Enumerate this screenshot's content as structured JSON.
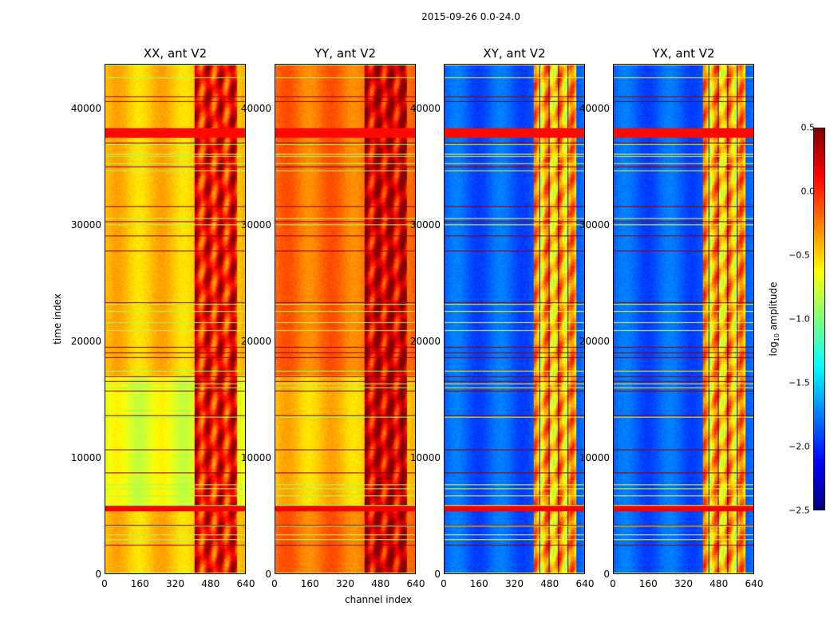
{
  "chart_data": {
    "type": "heatmap",
    "title": "2015-09-26 0.0-24.0",
    "xlabel": "channel index",
    "ylabel": "time index",
    "xlim": [
      0,
      640
    ],
    "ylim": [
      0,
      43800
    ],
    "xticks": [
      "0",
      "160",
      "320",
      "480",
      "640"
    ],
    "yticks": [
      "0",
      "10000",
      "20000",
      "30000",
      "40000"
    ],
    "panels": [
      {
        "title": "XX, ant V2",
        "base_log_amp": -0.45,
        "rfi_log_amp": 0.1
      },
      {
        "title": "YY, ant V2",
        "base_log_amp": -0.2,
        "rfi_log_amp": 0.25
      },
      {
        "title": "XY, ant V2",
        "base_log_amp": -1.85,
        "rfi_log_amp": -0.4
      },
      {
        "title": "YX, ant V2",
        "base_log_amp": -1.85,
        "rfi_log_amp": -0.4
      }
    ],
    "rfi_channel_range": [
      410,
      600
    ],
    "colorbar": {
      "label": "log10 amplitude",
      "label_main": "log",
      "label_sub": "10",
      "label_rest": " amplitude",
      "range": [
        -2.5,
        0.5
      ],
      "ticks": [
        "0.5",
        "0.0",
        "−0.5",
        "−1.0",
        "−1.5",
        "−2.0",
        "−2.5"
      ],
      "colormap": "jet"
    }
  }
}
